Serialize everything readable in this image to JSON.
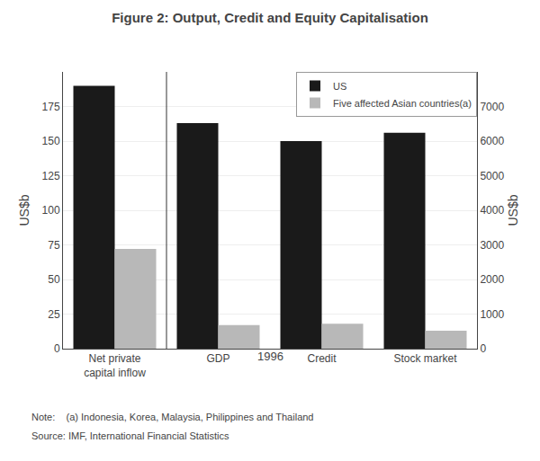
{
  "chart_data": {
    "type": "bar",
    "title": "Figure 2: Output, Credit and Equity Capitalisation",
    "subtitle": "1996",
    "categories": [
      "Net private\ncapital inflow",
      "GDP",
      "Credit",
      "Stock market"
    ],
    "series": [
      {
        "name": "US",
        "color": "#1a1a1a",
        "values": [
          190,
          163,
          150,
          156
        ]
      },
      {
        "name": "Five affected Asian countries(a)",
        "color": "#b8b8b8",
        "values": [
          72,
          17,
          18,
          13
        ]
      }
    ],
    "y_label": "US$b",
    "y2_label": "US$b",
    "ylim": [
      0,
      200
    ],
    "yticks": [
      0,
      25,
      50,
      75,
      100,
      125,
      150,
      175
    ],
    "y2lim": [
      0,
      8000
    ],
    "y2ticks": [
      0,
      1000,
      2000,
      3000,
      4000,
      5000,
      6000,
      7000
    ],
    "grid": true,
    "legend": "upper right",
    "annotations": [
      "Note:    (a) Indonesia, Korea, Malaysia, Philippines and Thailand",
      "Source: IMF, International Financial Statistics"
    ]
  }
}
